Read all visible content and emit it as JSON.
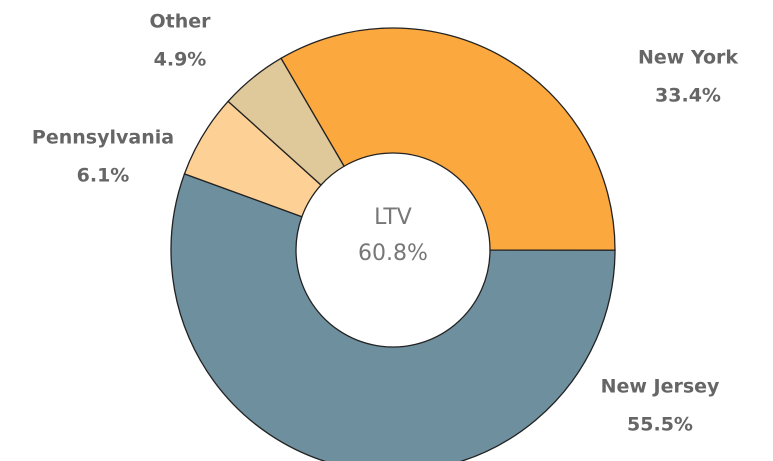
{
  "chart_data": {
    "type": "donut",
    "center_label": "LTV",
    "center_value": "60.8%",
    "categories": [
      "New York",
      "New Jersey",
      "Pennsylvania",
      "Other"
    ],
    "values": [
      33.4,
      55.5,
      6.1,
      4.9
    ],
    "value_labels": [
      "33.4%",
      "55.5%",
      "6.1%",
      "4.9%"
    ],
    "colors": [
      "#fba83f",
      "#6e8f9e",
      "#fdd096",
      "#dfc89a"
    ]
  }
}
